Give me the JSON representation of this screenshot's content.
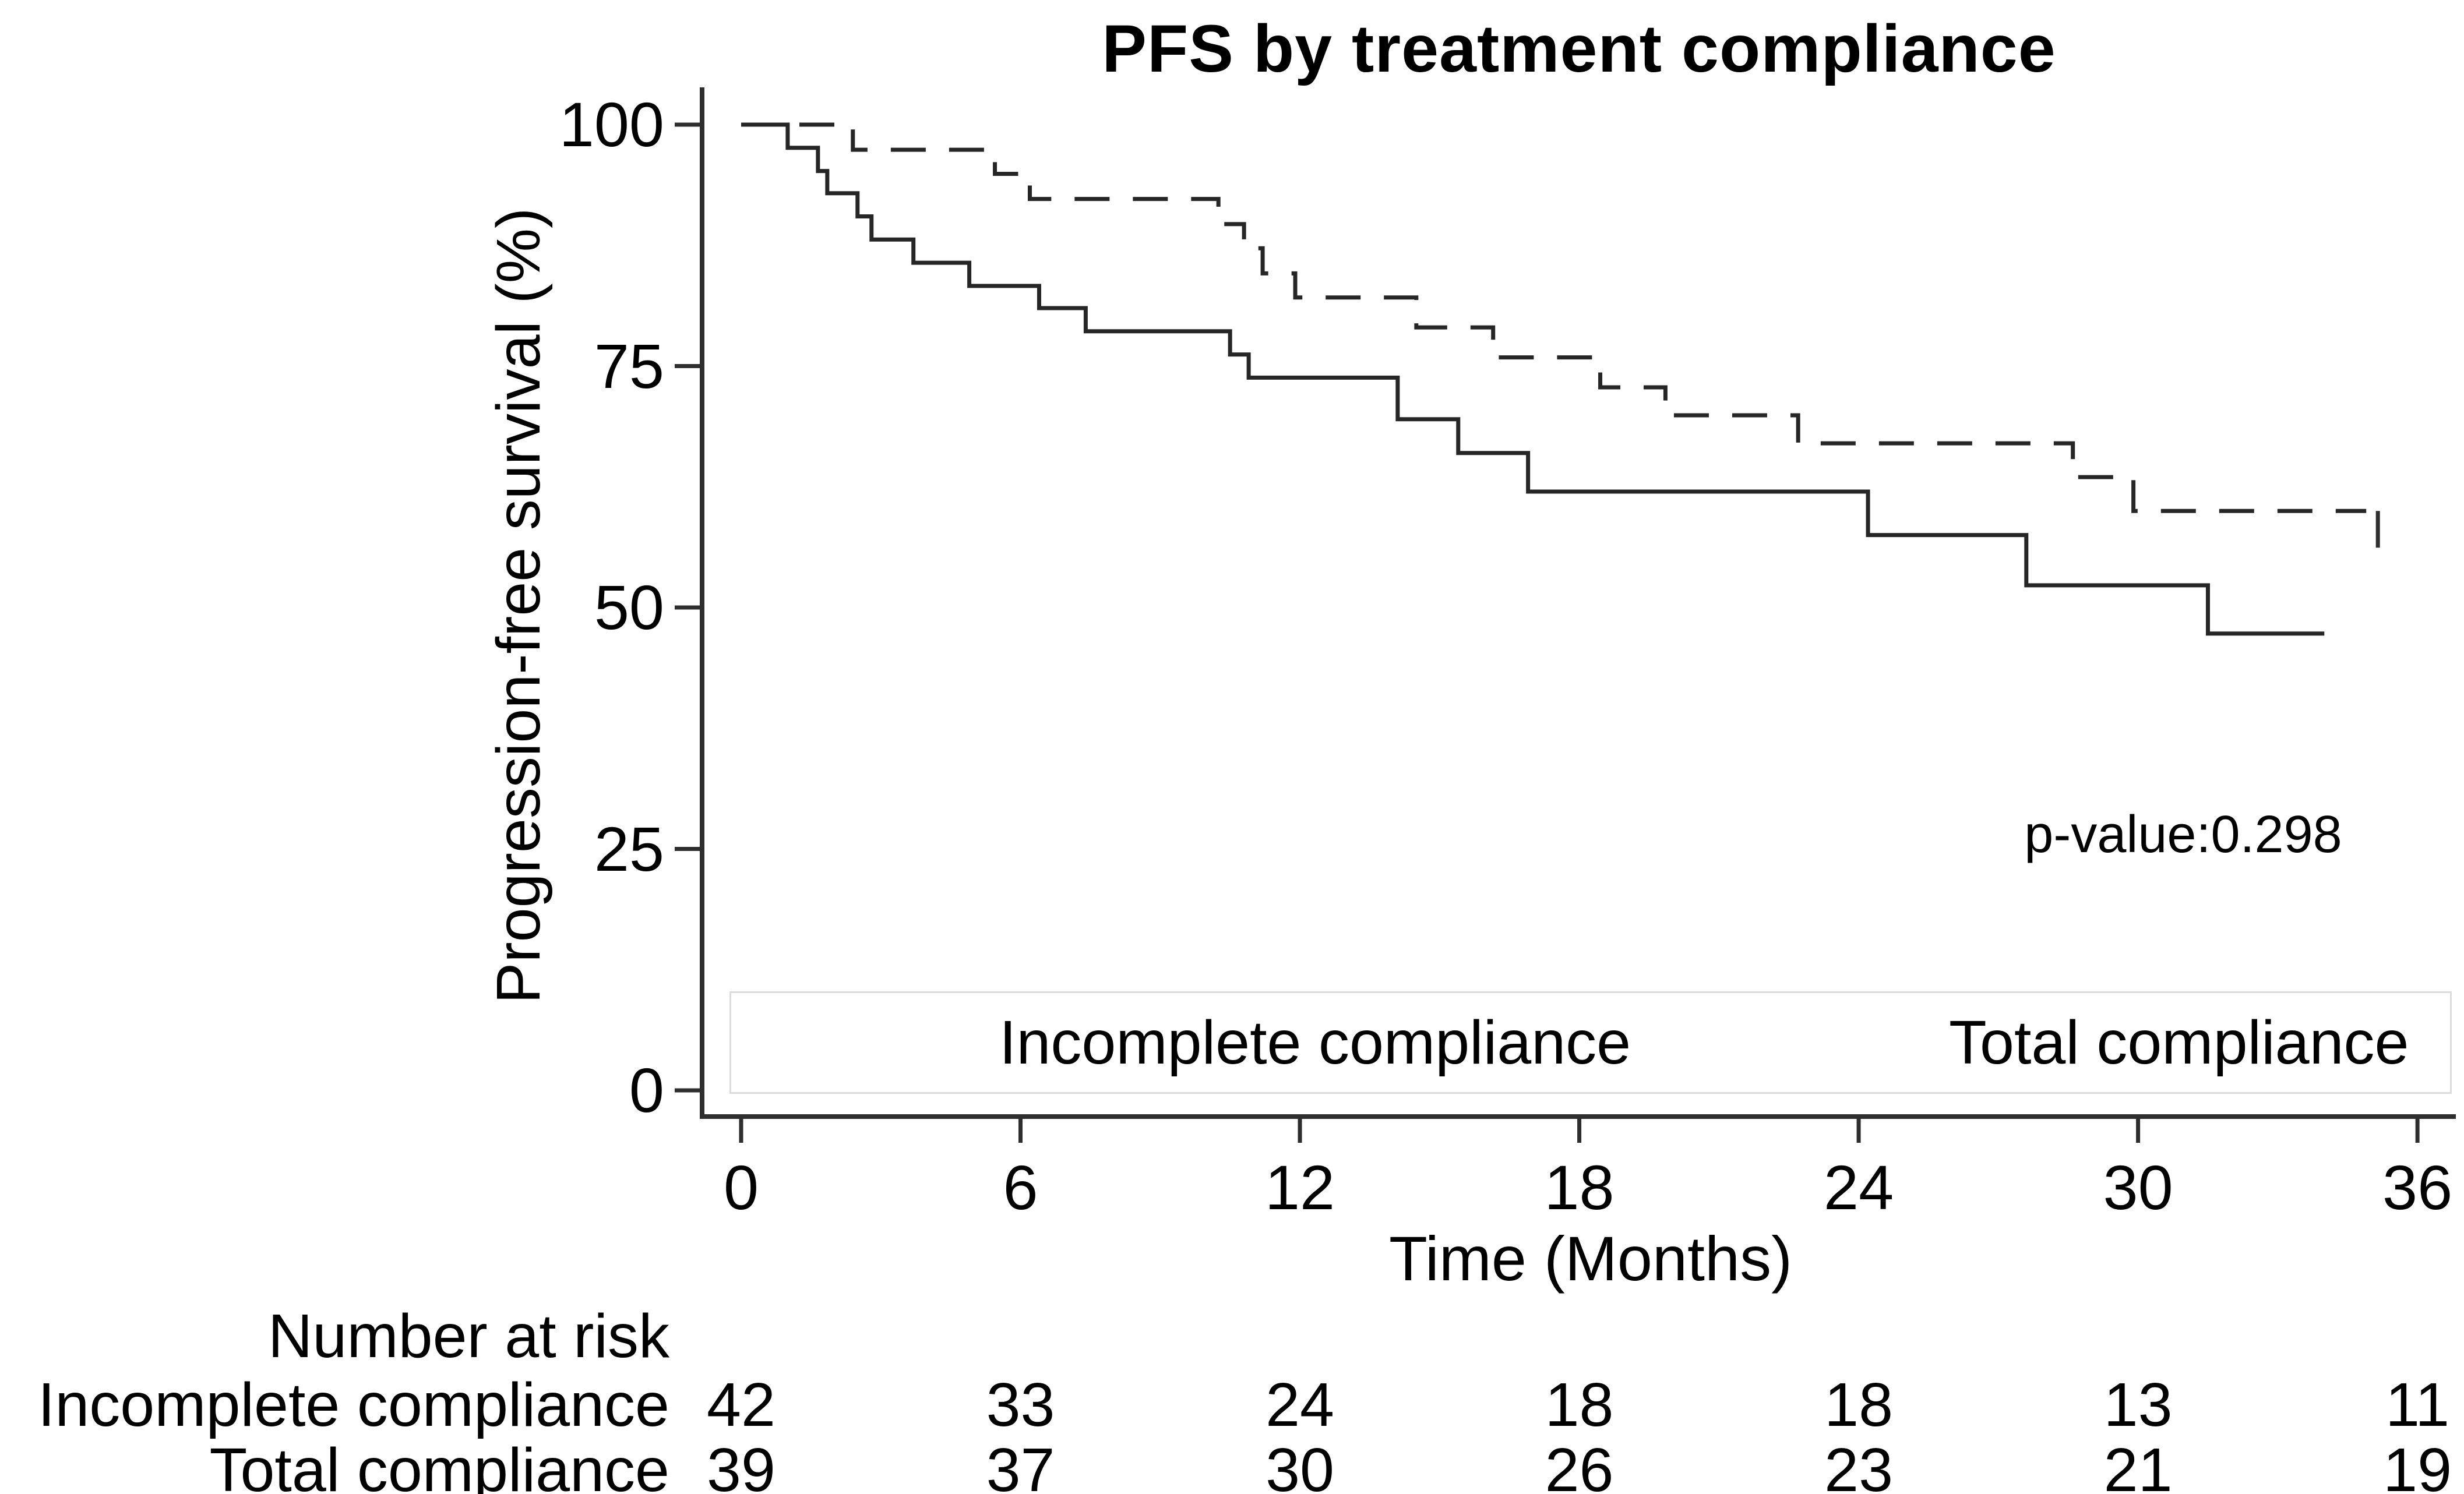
{
  "title": "PFS by treatment compliance",
  "annotation": "p-value:0.298",
  "colors": {
    "line": "#262626",
    "axis": "#2e2e2e",
    "text": "#000000",
    "legend_border": "#dcdcdc",
    "background": "#ffffff"
  },
  "legend": {
    "items": [
      {
        "label": "Incomplete compliance",
        "style": "solid"
      },
      {
        "label": "Total compliance",
        "style": "dashed"
      }
    ]
  },
  "chart_data": {
    "type": "line",
    "subtype": "kaplan-meier-step",
    "title": "PFS by treatment compliance",
    "xlabel": "Time (Months)",
    "ylabel": "Progression-free survival (%)",
    "xlim": [
      0,
      36
    ],
    "ylim": [
      0,
      100
    ],
    "x_ticks": [
      0,
      6,
      12,
      18,
      24,
      30,
      36
    ],
    "y_ticks": [
      0,
      25,
      50,
      75,
      100
    ],
    "grid": false,
    "legend_position": "bottom-inside",
    "annotation": "p-value:0.298",
    "series": [
      {
        "name": "Incomplete compliance",
        "style": "solid",
        "steps": [
          [
            0,
            100
          ],
          [
            1.0,
            97.6
          ],
          [
            1.65,
            95.2
          ],
          [
            1.85,
            92.9
          ],
          [
            2.5,
            90.5
          ],
          [
            2.8,
            88.1
          ],
          [
            3.7,
            85.7
          ],
          [
            4.9,
            83.3
          ],
          [
            6.4,
            81.0
          ],
          [
            7.4,
            78.6
          ],
          [
            10.5,
            76.2
          ],
          [
            10.9,
            73.8
          ],
          [
            14.1,
            69.5
          ],
          [
            15.4,
            66.0
          ],
          [
            16.9,
            62.0
          ],
          [
            24.2,
            57.5
          ],
          [
            27.6,
            52.3
          ],
          [
            31.5,
            47.3
          ]
        ],
        "end_time": 34.0
      },
      {
        "name": "Total compliance",
        "style": "dashed",
        "steps": [
          [
            0,
            100
          ],
          [
            2.4,
            97.4
          ],
          [
            5.45,
            94.9
          ],
          [
            6.2,
            92.3
          ],
          [
            10.25,
            89.7
          ],
          [
            10.8,
            87.2
          ],
          [
            11.2,
            84.6
          ],
          [
            11.9,
            82.1
          ],
          [
            14.5,
            79.0
          ],
          [
            16.15,
            75.9
          ],
          [
            18.45,
            72.8
          ],
          [
            19.85,
            69.9
          ],
          [
            22.7,
            67.0
          ],
          [
            28.6,
            63.5
          ],
          [
            29.9,
            60.0
          ]
        ],
        "end_time": 34.9,
        "end_tick": {
          "time": 35.15,
          "from": 60.0,
          "to": 56.2
        }
      }
    ],
    "number_at_risk": {
      "header": "Number at risk",
      "times": [
        0,
        6,
        12,
        18,
        24,
        30,
        36
      ],
      "rows": [
        {
          "label": "Incomplete compliance",
          "counts": [
            42,
            33,
            24,
            18,
            18,
            13,
            11
          ]
        },
        {
          "label": "Total compliance",
          "counts": [
            39,
            37,
            30,
            26,
            23,
            21,
            19
          ]
        }
      ]
    }
  }
}
